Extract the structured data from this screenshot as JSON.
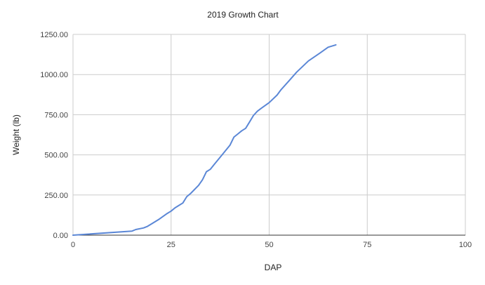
{
  "chart_data": {
    "type": "line",
    "title": "2019 Growth Chart",
    "xlabel": "DAP",
    "ylabel": "Weight (lb)",
    "xlim": [
      0,
      100
    ],
    "ylim": [
      0,
      1250
    ],
    "x_ticks": [
      0,
      25,
      50,
      75,
      100
    ],
    "x_tick_labels": [
      "0",
      "25",
      "50",
      "75",
      "100"
    ],
    "y_ticks": [
      0,
      250,
      500,
      750,
      1000,
      1250
    ],
    "y_tick_labels": [
      "0.00",
      "250.00",
      "500.00",
      "750.00",
      "1000.00",
      "1250.00"
    ],
    "grid": true,
    "legend": "none",
    "series": [
      {
        "color": "#5b87d6",
        "x": [
          0,
          15,
          16,
          18,
          19,
          20,
          22,
          24,
          25,
          26,
          28,
          29,
          30,
          32,
          33,
          34,
          35,
          36,
          38,
          40,
          41,
          42,
          43,
          44,
          45,
          46,
          47,
          48,
          50,
          52,
          53,
          55,
          57,
          60,
          63,
          65,
          67
        ],
        "y": [
          0,
          25,
          35,
          45,
          55,
          70,
          100,
          135,
          150,
          170,
          200,
          240,
          260,
          310,
          345,
          395,
          410,
          440,
          500,
          560,
          610,
          630,
          650,
          665,
          705,
          745,
          772,
          790,
          825,
          872,
          905,
          960,
          1015,
          1085,
          1135,
          1170,
          1185
        ]
      }
    ]
  }
}
